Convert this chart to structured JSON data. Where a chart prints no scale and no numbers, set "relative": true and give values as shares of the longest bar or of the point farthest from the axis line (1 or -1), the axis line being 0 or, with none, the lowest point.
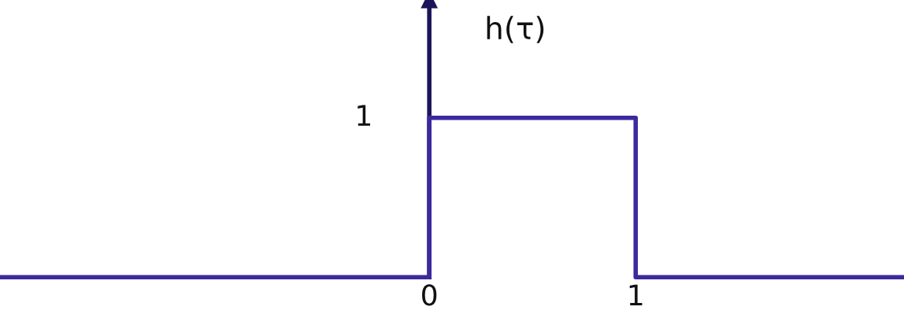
{
  "chart_data": {
    "type": "line",
    "ylabel": "h(τ)",
    "relative": true,
    "series": [
      {
        "color": "#3b2a9e",
        "x": [
          -2.08,
          0,
          0,
          1,
          1,
          2.3
        ],
        "values": [
          0,
          0,
          1,
          1,
          0,
          0
        ]
      }
    ],
    "annotations": [
      {
        "text": "1",
        "x": 0,
        "y": 1
      }
    ],
    "xlim": [
      -2.08,
      2.3
    ],
    "xticks": [
      0,
      1
    ],
    "grid": false,
    "legend": false,
    "marker": "none",
    "line_style": "solid"
  }
}
